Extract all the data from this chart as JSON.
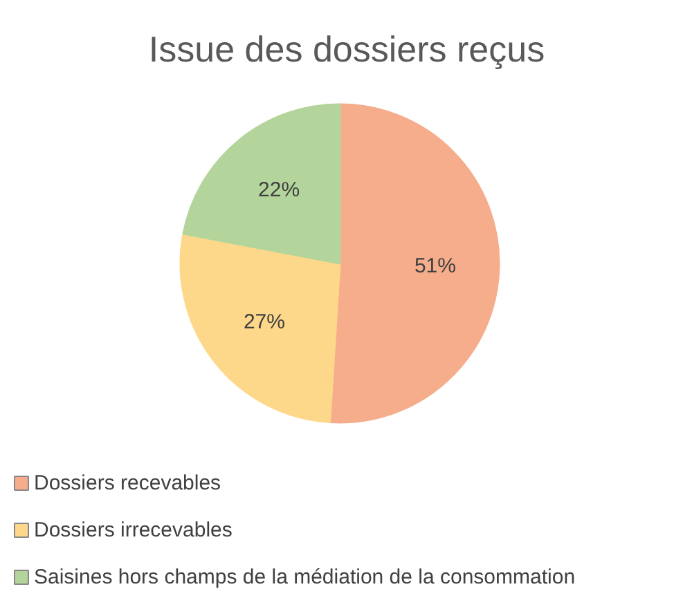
{
  "chart_data": {
    "type": "pie",
    "title": "Issue des dossiers reçus",
    "categories": [
      "Dossiers recevables",
      "Dossiers irrecevables",
      "Saisines hors champs de la médiation de la consommation"
    ],
    "values": [
      51,
      27,
      22
    ],
    "colors": [
      "#f5ad8c",
      "#fed88a",
      "#b3d59c"
    ],
    "value_labels": [
      "51%",
      "27%",
      "22%"
    ],
    "legend": "bottom"
  }
}
